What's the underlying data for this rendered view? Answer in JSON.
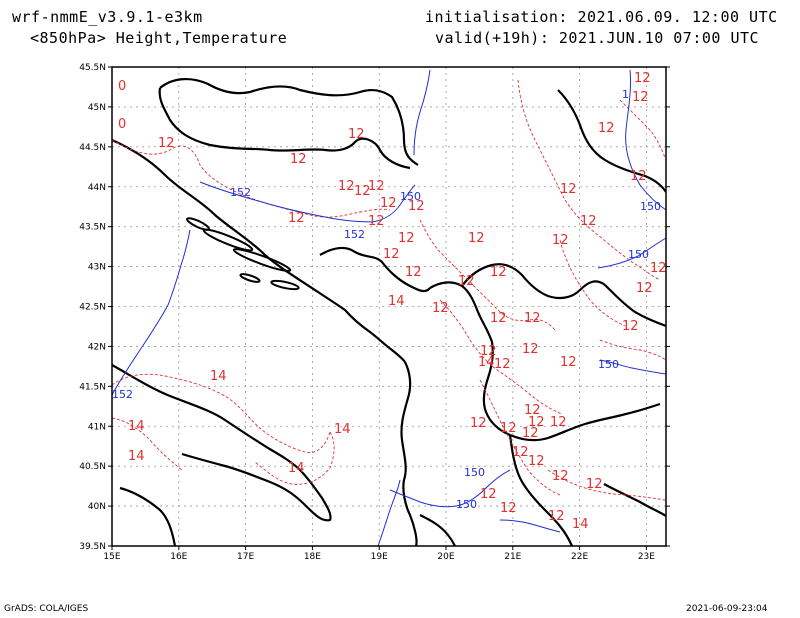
{
  "header": {
    "model": "wrf-nmmE_v3.9.1-e3km",
    "field": "<850hPa> Height,Temperature",
    "init": "initialisation: 2021.06.09. 12:00 UTC",
    "valid": "valid(+19h): 2021.JUN.10 07:00 UTC"
  },
  "footer": {
    "credit": "GrADS: COLA/IGES",
    "timestamp": "2021-06-09-23:04"
  },
  "map": {
    "lat_labels": [
      "45.5N",
      "45N",
      "44.5N",
      "44N",
      "43.5N",
      "43N",
      "42.5N",
      "42N",
      "41.5N",
      "41N",
      "40.5N",
      "40N",
      "39.5N"
    ],
    "lon_labels": [
      "15E",
      "16E",
      "17E",
      "18E",
      "19E",
      "20E",
      "21E",
      "22E",
      "23E"
    ],
    "colors": {
      "temperature": "#e23030",
      "height": "#2030d0",
      "coast": "#000000",
      "grid": "#999999"
    },
    "temp_labels": [
      "0",
      "0",
      "12",
      "12",
      "12",
      "12",
      "12",
      "12",
      "12",
      "12",
      "12",
      "12",
      "12",
      "12",
      "12",
      "12",
      "12",
      "12",
      "12",
      "12",
      "12",
      "12",
      "12",
      "12",
      "12",
      "12",
      "12",
      "12",
      "12",
      "12",
      "12",
      "12",
      "12",
      "12",
      "12",
      "12",
      "12",
      "12",
      "12",
      "12",
      "12",
      "12",
      "12",
      "12",
      "12",
      "12",
      "12",
      "12",
      "14",
      "14",
      "14",
      "14",
      "14",
      "14",
      "14",
      "14"
    ],
    "height_labels": [
      "152",
      "152",
      "152",
      "150",
      "150",
      "150",
      "150",
      "150",
      "150",
      "1"
    ]
  }
}
